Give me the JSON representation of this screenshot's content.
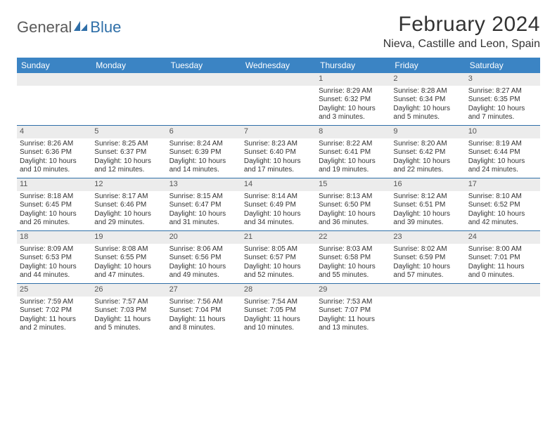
{
  "logo": {
    "text1": "General",
    "text2": "Blue"
  },
  "title": "February 2024",
  "location": "Nieva, Castille and Leon, Spain",
  "colors": {
    "header_bg": "#3b84c4",
    "header_text": "#ffffff",
    "daynum_bg": "#ececec",
    "week_border": "#2f6fa8",
    "body_text": "#333333",
    "logo_gray": "#5a5a5a",
    "logo_blue": "#2f6fa8"
  },
  "day_headers": [
    "Sunday",
    "Monday",
    "Tuesday",
    "Wednesday",
    "Thursday",
    "Friday",
    "Saturday"
  ],
  "weeks": [
    [
      null,
      null,
      null,
      null,
      {
        "n": "1",
        "sr": "8:29 AM",
        "ss": "6:32 PM",
        "dl": "10 hours and 3 minutes."
      },
      {
        "n": "2",
        "sr": "8:28 AM",
        "ss": "6:34 PM",
        "dl": "10 hours and 5 minutes."
      },
      {
        "n": "3",
        "sr": "8:27 AM",
        "ss": "6:35 PM",
        "dl": "10 hours and 7 minutes."
      }
    ],
    [
      {
        "n": "4",
        "sr": "8:26 AM",
        "ss": "6:36 PM",
        "dl": "10 hours and 10 minutes."
      },
      {
        "n": "5",
        "sr": "8:25 AM",
        "ss": "6:37 PM",
        "dl": "10 hours and 12 minutes."
      },
      {
        "n": "6",
        "sr": "8:24 AM",
        "ss": "6:39 PM",
        "dl": "10 hours and 14 minutes."
      },
      {
        "n": "7",
        "sr": "8:23 AM",
        "ss": "6:40 PM",
        "dl": "10 hours and 17 minutes."
      },
      {
        "n": "8",
        "sr": "8:22 AM",
        "ss": "6:41 PM",
        "dl": "10 hours and 19 minutes."
      },
      {
        "n": "9",
        "sr": "8:20 AM",
        "ss": "6:42 PM",
        "dl": "10 hours and 22 minutes."
      },
      {
        "n": "10",
        "sr": "8:19 AM",
        "ss": "6:44 PM",
        "dl": "10 hours and 24 minutes."
      }
    ],
    [
      {
        "n": "11",
        "sr": "8:18 AM",
        "ss": "6:45 PM",
        "dl": "10 hours and 26 minutes."
      },
      {
        "n": "12",
        "sr": "8:17 AM",
        "ss": "6:46 PM",
        "dl": "10 hours and 29 minutes."
      },
      {
        "n": "13",
        "sr": "8:15 AM",
        "ss": "6:47 PM",
        "dl": "10 hours and 31 minutes."
      },
      {
        "n": "14",
        "sr": "8:14 AM",
        "ss": "6:49 PM",
        "dl": "10 hours and 34 minutes."
      },
      {
        "n": "15",
        "sr": "8:13 AM",
        "ss": "6:50 PM",
        "dl": "10 hours and 36 minutes."
      },
      {
        "n": "16",
        "sr": "8:12 AM",
        "ss": "6:51 PM",
        "dl": "10 hours and 39 minutes."
      },
      {
        "n": "17",
        "sr": "8:10 AM",
        "ss": "6:52 PM",
        "dl": "10 hours and 42 minutes."
      }
    ],
    [
      {
        "n": "18",
        "sr": "8:09 AM",
        "ss": "6:53 PM",
        "dl": "10 hours and 44 minutes."
      },
      {
        "n": "19",
        "sr": "8:08 AM",
        "ss": "6:55 PM",
        "dl": "10 hours and 47 minutes."
      },
      {
        "n": "20",
        "sr": "8:06 AM",
        "ss": "6:56 PM",
        "dl": "10 hours and 49 minutes."
      },
      {
        "n": "21",
        "sr": "8:05 AM",
        "ss": "6:57 PM",
        "dl": "10 hours and 52 minutes."
      },
      {
        "n": "22",
        "sr": "8:03 AM",
        "ss": "6:58 PM",
        "dl": "10 hours and 55 minutes."
      },
      {
        "n": "23",
        "sr": "8:02 AM",
        "ss": "6:59 PM",
        "dl": "10 hours and 57 minutes."
      },
      {
        "n": "24",
        "sr": "8:00 AM",
        "ss": "7:01 PM",
        "dl": "11 hours and 0 minutes."
      }
    ],
    [
      {
        "n": "25",
        "sr": "7:59 AM",
        "ss": "7:02 PM",
        "dl": "11 hours and 2 minutes."
      },
      {
        "n": "26",
        "sr": "7:57 AM",
        "ss": "7:03 PM",
        "dl": "11 hours and 5 minutes."
      },
      {
        "n": "27",
        "sr": "7:56 AM",
        "ss": "7:04 PM",
        "dl": "11 hours and 8 minutes."
      },
      {
        "n": "28",
        "sr": "7:54 AM",
        "ss": "7:05 PM",
        "dl": "11 hours and 10 minutes."
      },
      {
        "n": "29",
        "sr": "7:53 AM",
        "ss": "7:07 PM",
        "dl": "11 hours and 13 minutes."
      },
      null,
      null
    ]
  ],
  "labels": {
    "sunrise": "Sunrise: ",
    "sunset": "Sunset: ",
    "daylight": "Daylight: "
  }
}
